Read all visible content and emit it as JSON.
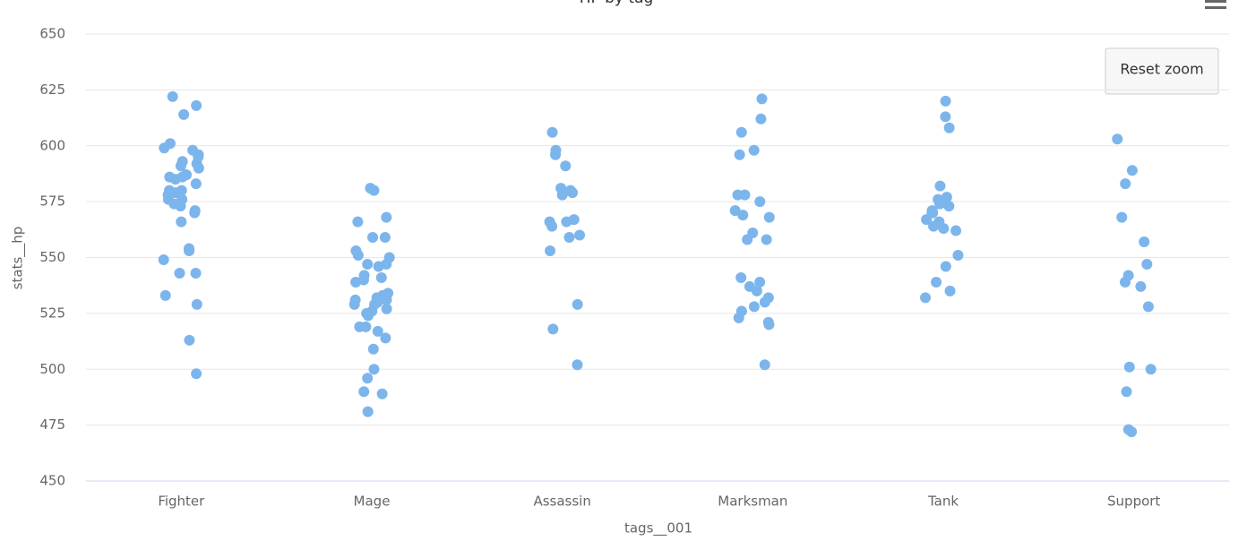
{
  "chart_data": {
    "type": "scatter",
    "title": "HP by tag",
    "x_label": "tags__001",
    "y_label": "stats__hp",
    "categories": [
      "Fighter",
      "Mage",
      "Assassin",
      "Marksman",
      "Tank",
      "Support"
    ],
    "values": [
      [
        622,
        618,
        614,
        601,
        599,
        598,
        596,
        595,
        593,
        592,
        591,
        590,
        587,
        587,
        586,
        586,
        585,
        583,
        580,
        580,
        579,
        578,
        576,
        576,
        574,
        573,
        571,
        570,
        566,
        554,
        553,
        549,
        543,
        543,
        533,
        529,
        513,
        498
      ],
      [
        581,
        580,
        568,
        566,
        559,
        559,
        553,
        551,
        550,
        547,
        547,
        546,
        542,
        541,
        540,
        539,
        534,
        533,
        533,
        532,
        531,
        531,
        530,
        529,
        529,
        527,
        526,
        525,
        524,
        519,
        519,
        517,
        514,
        509,
        500,
        496,
        490,
        489,
        481
      ],
      [
        606,
        598,
        596,
        591,
        581,
        580,
        579,
        579,
        578,
        567,
        566,
        566,
        564,
        560,
        559,
        553,
        529,
        518,
        502
      ],
      [
        621,
        612,
        606,
        598,
        596,
        578,
        578,
        575,
        571,
        569,
        568,
        561,
        558,
        558,
        541,
        539,
        537,
        535,
        532,
        530,
        528,
        526,
        523,
        521,
        520,
        502
      ],
      [
        620,
        613,
        608,
        582,
        577,
        576,
        574,
        573,
        571,
        570,
        570,
        567,
        566,
        564,
        563,
        562,
        551,
        546,
        539,
        535,
        532
      ],
      [
        603,
        589,
        583,
        568,
        557,
        547,
        542,
        539,
        537,
        528,
        501,
        500,
        490,
        473,
        472
      ]
    ],
    "color": "#7cb5ec",
    "ylim": [
      450,
      650
    ],
    "yticks": [
      450,
      475,
      500,
      525,
      550,
      575,
      600,
      625,
      650
    ],
    "grid": true
  },
  "reset_button": "Reset zoom"
}
